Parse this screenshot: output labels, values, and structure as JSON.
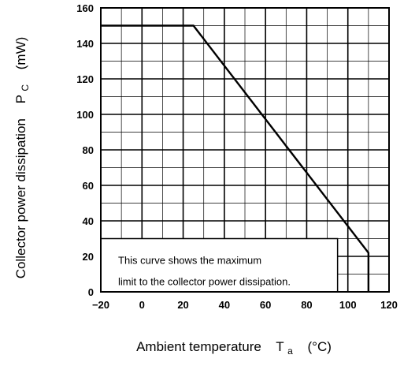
{
  "chart_data": {
    "type": "line",
    "xlabel": {
      "text": "Ambient temperature",
      "symbol": "T",
      "sub": "a",
      "unit": "(°C)"
    },
    "ylabel": {
      "text": "Collector power dissipation",
      "symbol": "P",
      "sub": "C",
      "unit": "(mW)"
    },
    "xlim": [
      -20,
      120
    ],
    "ylim": [
      0,
      160
    ],
    "xticks": [
      "−20",
      "0",
      "20",
      "40",
      "60",
      "80",
      "100",
      "120"
    ],
    "yticks": [
      "0",
      "20",
      "40",
      "60",
      "80",
      "100",
      "120",
      "140",
      "160"
    ],
    "grid": true,
    "series": [
      {
        "x": [
          -20,
          25,
          110,
          110
        ],
        "y": [
          150,
          150,
          22,
          0
        ]
      }
    ],
    "annotation": {
      "line1": "This curve shows the maximum",
      "line2": "limit to the collector power dissipation."
    }
  }
}
